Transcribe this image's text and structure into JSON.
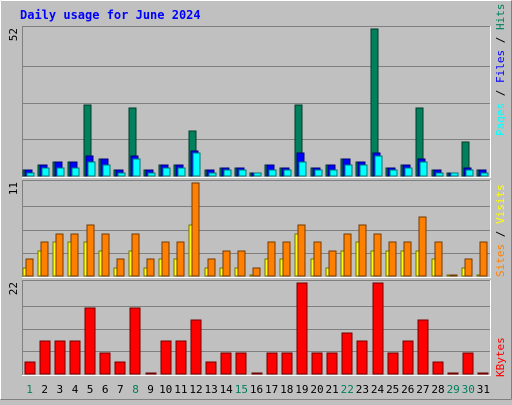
{
  "chart_data": {
    "type": "bar",
    "title": "Daily usage for June 2024",
    "categories": [
      "1",
      "2",
      "3",
      "4",
      "5",
      "6",
      "7",
      "8",
      "9",
      "10",
      "11",
      "12",
      "13",
      "14",
      "15",
      "16",
      "17",
      "18",
      "19",
      "20",
      "21",
      "22",
      "23",
      "24",
      "25",
      "26",
      "27",
      "28",
      "29",
      "30",
      "31"
    ],
    "weekend_days": [
      1,
      8,
      15,
      22,
      29,
      30
    ],
    "panels": [
      {
        "id": "hits-files-pages",
        "max_label": "52",
        "ymax": 52,
        "grid": true,
        "series": [
          {
            "name": "Hits",
            "color": "#00805c",
            "values": [
              2,
              4,
              5,
              5,
              25,
              6,
              2,
              24,
              2,
              4,
              4,
              16,
              2,
              3,
              3,
              1,
              4,
              3,
              25,
              3,
              4,
              6,
              5,
              52,
              3,
              4,
              24,
              2,
              1,
              12,
              2
            ]
          },
          {
            "name": "Files",
            "color": "#0000ff",
            "values": [
              2,
              4,
              5,
              5,
              7,
              6,
              2,
              7,
              2,
              4,
              4,
              9,
              2,
              3,
              3,
              1,
              4,
              3,
              8,
              3,
              4,
              6,
              5,
              8,
              3,
              4,
              6,
              2,
              1,
              3,
              2
            ]
          },
          {
            "name": "Pages",
            "color": "#00ffff",
            "values": [
              1,
              3,
              3,
              3,
              5,
              4,
              1,
              6,
              1,
              3,
              3,
              8,
              1,
              2,
              2,
              1,
              2,
              2,
              5,
              2,
              2,
              4,
              4,
              7,
              2,
              3,
              5,
              1,
              1,
              2,
              1
            ]
          }
        ]
      },
      {
        "id": "visits-sites",
        "max_label": "11",
        "ymax": 11,
        "grid": true,
        "series": [
          {
            "name": "Visits",
            "color": "#ffff00",
            "values": [
              1,
              3,
              4,
              4,
              4,
              3,
              1,
              3,
              1,
              2,
              2,
              6,
              1,
              1,
              1,
              0,
              2,
              2,
              5,
              2,
              1,
              3,
              4,
              3,
              3,
              3,
              3,
              2,
              0,
              1,
              0
            ]
          },
          {
            "name": "Sites",
            "color": "#ff8000",
            "values": [
              2,
              4,
              5,
              5,
              6,
              5,
              2,
              5,
              2,
              4,
              4,
              11,
              2,
              3,
              3,
              1,
              4,
              4,
              6,
              4,
              3,
              5,
              6,
              5,
              4,
              4,
              7,
              4,
              0,
              2,
              4
            ]
          }
        ]
      },
      {
        "id": "kbytes",
        "max_label": "22",
        "ymax": 22,
        "grid": true,
        "series": [
          {
            "name": "KBytes",
            "color": "#ff0000",
            "values": [
              3,
              8,
              8,
              8,
              16,
              5,
              3,
              16,
              0,
              8,
              8,
              13,
              3,
              5,
              5,
              0,
              5,
              5,
              22,
              5,
              5,
              10,
              8,
              22,
              5,
              8,
              13,
              3,
              0,
              5,
              0
            ]
          }
        ]
      }
    ],
    "legend_right": [
      {
        "text": "Pages",
        "color": "#00ffff"
      },
      {
        "text": " / ",
        "color": "#000000"
      },
      {
        "text": "Files",
        "color": "#0000ff"
      },
      {
        "text": " / ",
        "color": "#000000"
      },
      {
        "text": "Hits",
        "color": "#00805c"
      },
      {
        "text": "Sites",
        "color": "#ff8000"
      },
      {
        "text": " / ",
        "color": "#000000"
      },
      {
        "text": "Visits",
        "color": "#ffff00"
      },
      {
        "text": "KBytes",
        "color": "#ff0000"
      }
    ],
    "colors": {
      "background": "#c0c0c0",
      "title": "#0000ff",
      "axis_label": "#000000",
      "weekend_label": "#00805c",
      "grid": "#808080"
    }
  }
}
